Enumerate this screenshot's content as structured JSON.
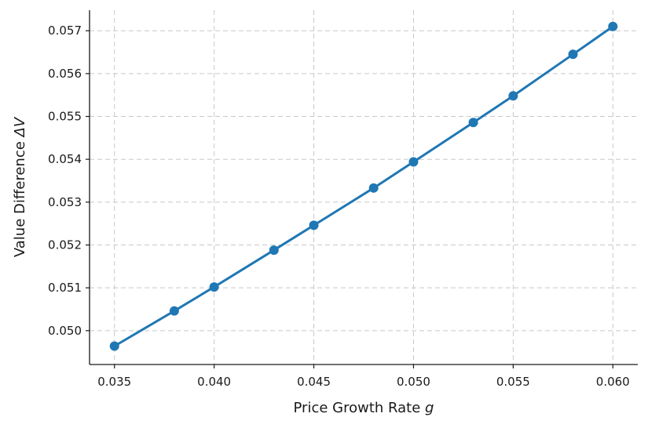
{
  "chart_data": {
    "type": "line",
    "title": "",
    "xlabel": "Price Growth Rate",
    "xlabel_var": "g",
    "ylabel": "Value Difference",
    "ylabel_var": "ΔV",
    "x": [
      0.035,
      0.038,
      0.04,
      0.043,
      0.045,
      0.048,
      0.05,
      0.053,
      0.055,
      0.058,
      0.06
    ],
    "series": [
      {
        "values": [
          0.04964,
          0.05046,
          0.05102,
          0.05188,
          0.05246,
          0.05333,
          0.05394,
          0.05486,
          0.05548,
          0.05645,
          0.0571
        ],
        "color": "#1f77b4",
        "marker": "circle"
      }
    ],
    "xticks": [
      0.035,
      0.04,
      0.045,
      0.05,
      0.055,
      0.06
    ],
    "xtick_labels": [
      "0.035",
      "0.040",
      "0.045",
      "0.050",
      "0.055",
      "0.060"
    ],
    "yticks": [
      0.05,
      0.051,
      0.052,
      0.053,
      0.054,
      0.055,
      0.056,
      0.057
    ],
    "ytick_labels": [
      "0.050",
      "0.051",
      "0.052",
      "0.053",
      "0.054",
      "0.055",
      "0.056",
      "0.057"
    ],
    "xlim": [
      0.03375,
      0.06125
    ],
    "ylim": [
      0.04921,
      0.05748
    ],
    "grid": true,
    "legend": "none"
  }
}
